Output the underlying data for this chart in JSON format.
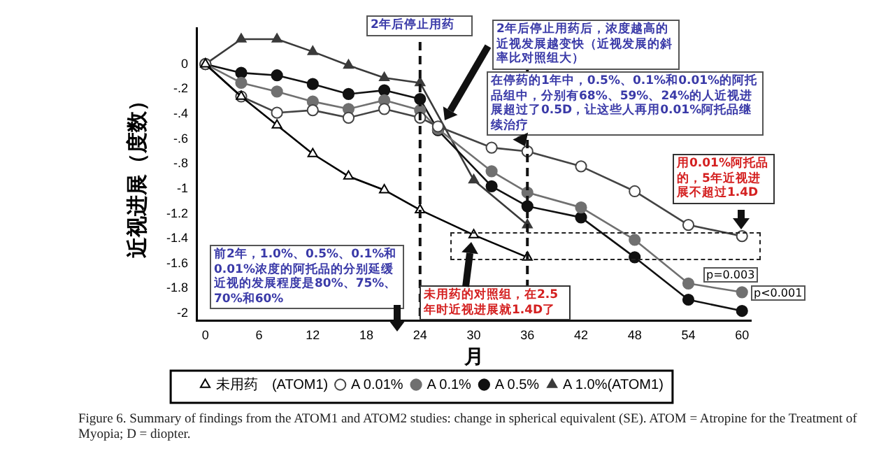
{
  "chart_data": {
    "type": "line",
    "xlabel": "月",
    "ylabel": "近视进展（度数）",
    "xlim": [
      -1,
      61
    ],
    "xticks": [
      0,
      6,
      12,
      18,
      24,
      30,
      36,
      42,
      48,
      54,
      60
    ],
    "ylim": [
      -2.06,
      0.29
    ],
    "yticks": [
      0,
      {
        "value": -0.2,
        "label": "-.2"
      },
      {
        "value": -0.4,
        "label": "-.4"
      },
      {
        "value": -0.6,
        "label": "-.6"
      },
      {
        "value": -0.8,
        "label": "-.8"
      },
      -1,
      -1.2,
      -1.4,
      -1.6,
      -1.8,
      -2
    ],
    "line_style": "solid",
    "grid": false,
    "legend": "bottom",
    "series": [
      {
        "name": "未用药　(ATOM1)",
        "color": "#000000",
        "marker": "triangle",
        "x": [
          0,
          4,
          8,
          12,
          16,
          20,
          24,
          30,
          36
        ],
        "values": [
          0,
          -0.26,
          -0.49,
          -0.72,
          -0.9,
          -1.01,
          -1.17,
          -1.37,
          -1.55
        ]
      },
      {
        "name": "A 0.01%",
        "color": "#444444",
        "marker": "circle",
        "x": [
          0,
          4,
          8,
          12,
          16,
          20,
          24,
          26,
          32,
          36,
          42,
          48,
          54,
          60
        ],
        "values": [
          0,
          -0.26,
          -0.39,
          -0.37,
          -0.43,
          -0.36,
          -0.43,
          -0.5,
          -0.67,
          -0.7,
          -0.82,
          -1.02,
          -1.29,
          -1.38
        ]
      },
      {
        "name": "A 0.1%",
        "color": "#707070",
        "marker": "circle",
        "x": [
          0,
          4,
          8,
          12,
          16,
          20,
          24,
          26,
          32,
          36,
          42,
          48,
          54,
          60
        ],
        "values": [
          0,
          -0.15,
          -0.22,
          -0.3,
          -0.36,
          -0.29,
          -0.37,
          -0.52,
          -0.86,
          -1.03,
          -1.15,
          -1.41,
          -1.76,
          -1.83
        ]
      },
      {
        "name": "A 0.5%",
        "color": "#111111",
        "marker": "circle",
        "x": [
          0,
          4,
          8,
          12,
          16,
          20,
          24,
          26,
          32,
          36,
          42,
          48,
          54,
          60
        ],
        "values": [
          0,
          -0.07,
          -0.09,
          -0.16,
          -0.24,
          -0.21,
          -0.28,
          -0.53,
          -0.98,
          -1.14,
          -1.23,
          -1.55,
          -1.89,
          -1.98
        ]
      },
      {
        "name": "A 1.0%(ATOM1)",
        "color": "#3a3a3a",
        "marker": "triangle",
        "x": [
          0,
          4,
          8,
          12,
          16,
          20,
          24,
          30,
          36
        ],
        "values": [
          0,
          0.2,
          0.2,
          0.1,
          -0.01,
          -0.11,
          -0.15,
          -0.93,
          -1.29
        ]
      }
    ],
    "ref_lines": [
      {
        "axis": "x",
        "value": 24,
        "line_style": "dashed"
      },
      {
        "axis": "x",
        "value": 36,
        "line_style": "dashed"
      }
    ],
    "annotations": [
      "2年后停止用药",
      "2年后停止用药后，浓度越高的近视发展越变快（近视发展的斜率比对照组大）",
      {
        "text": "在停药的1年中，0.5%、0.1%和0.01%的阿托品组中，分别有68%、59%、24%的人近视进展超过了0.5D，让这些人再用0.01%阿托品继续治疗",
        "x": 36,
        "y": -0.7
      },
      "用0.01%阿托品的，5年近视进展不超过1.4D",
      "前2年，1.0%、0.5%、0.1%和0.01%浓度的阿托品的分别延缓近视的发展程度是80%、75%、70%和60%",
      "未用药的对照组，在2.5年时近视进展就1.4D了",
      "p=0.003",
      "p<0.001",
      "Figure 6. Summary of findings from the ATOM1 and ATOM2 studies: change in spherical equivalent (SE). ATOM = Atropine for the Treatment of Myopia; D = diopter."
    ]
  }
}
